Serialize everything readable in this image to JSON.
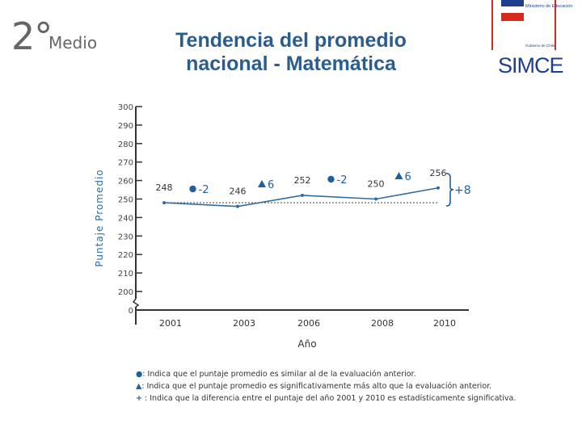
{
  "header": {
    "grade_number": "2°",
    "grade_word": "Medio",
    "title_line1": "Tendencia del promedio",
    "title_line2": "nacional - Matemática"
  },
  "logos": {
    "ministry_text": "Ministerio de Educación",
    "government_text": "Gobierno de Chile",
    "simce_text": "SIMCE"
  },
  "colors": {
    "title": "#2a5d8f",
    "series": "#2f6da3",
    "marker": "#1f5f9f",
    "axis": "#333333"
  },
  "chart_data": {
    "type": "line",
    "categories": [
      "2001",
      "2003",
      "2006",
      "2008",
      "2010"
    ],
    "values": [
      248,
      246,
      252,
      250,
      256
    ],
    "xlabel": "Año",
    "ylabel": "Puntaje Promedio",
    "ylim": [
      200,
      300
    ],
    "yticks": [
      "0",
      "200",
      "210",
      "220",
      "230",
      "240",
      "250",
      "260",
      "270",
      "280",
      "290",
      "300"
    ],
    "axis_break": true,
    "reference_line": 248,
    "grid": false,
    "changes": [
      {
        "symbol": "circle",
        "label": "-2"
      },
      {
        "symbol": "triangle",
        "label": "6"
      },
      {
        "symbol": "circle",
        "label": "-2"
      },
      {
        "symbol": "triangle",
        "label": "6"
      }
    ],
    "total_change": "+8"
  },
  "legend": {
    "items": [
      {
        "symbol": "●",
        "text": ": Indica que el puntaje promedio es similar al de la evaluación anterior."
      },
      {
        "symbol": "▲",
        "text": ": Indica que el puntaje promedio es significativamente más alto que la evaluación anterior."
      },
      {
        "symbol": "+",
        "text": " : Indica que la diferencia entre el puntaje del año 2001 y 2010 es estadísticamente significativa."
      }
    ]
  }
}
